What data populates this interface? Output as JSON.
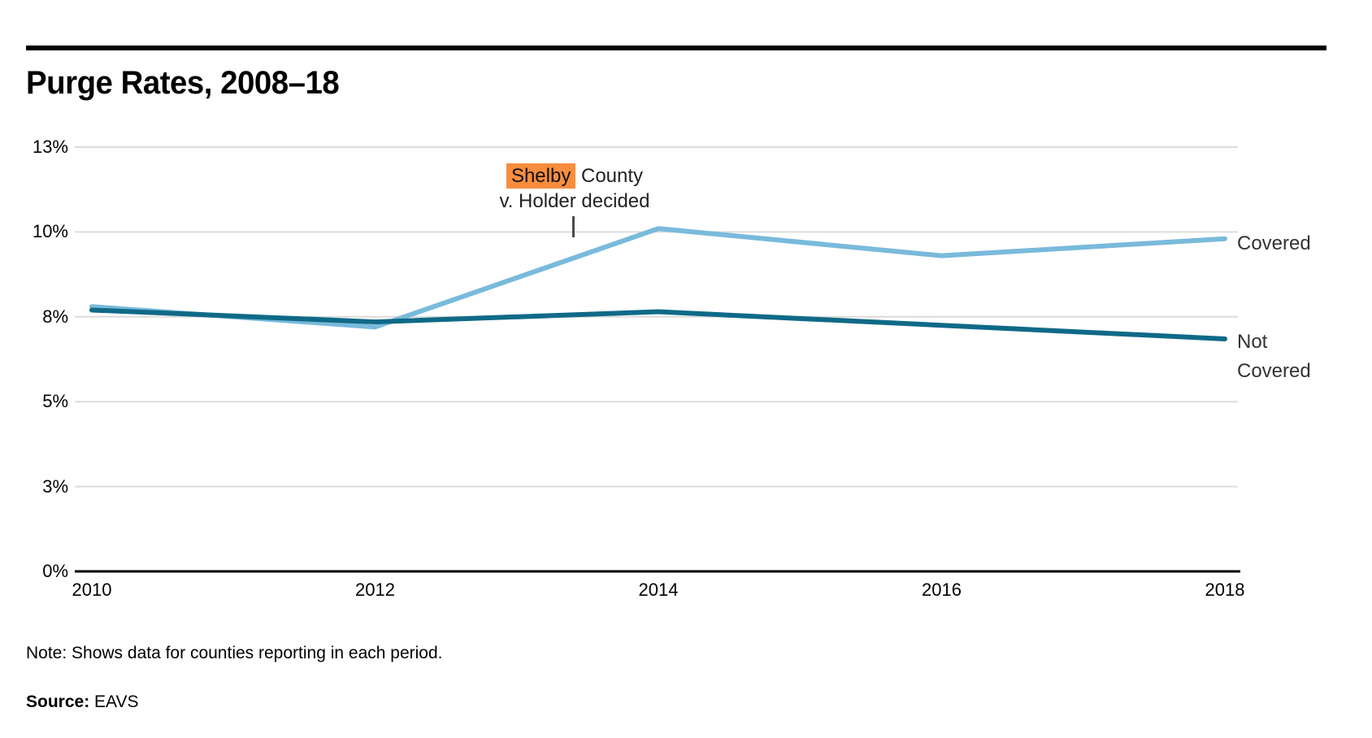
{
  "title": "Purge Rates, 2008–18",
  "chart_data": {
    "type": "line",
    "title": "Purge Rates, 2008–18",
    "x": [
      2010,
      2012,
      2014,
      2016,
      2018
    ],
    "x_tick_labels": [
      "2010",
      "2012",
      "2014",
      "2016",
      "2018"
    ],
    "ylim": [
      0,
      12.5
    ],
    "yticks": [
      {
        "value": 0,
        "label": "0%"
      },
      {
        "value": 2.5,
        "label": "3%"
      },
      {
        "value": 5,
        "label": "5%"
      },
      {
        "value": 7.5,
        "label": "8%"
      },
      {
        "value": 10,
        "label": "10%"
      },
      {
        "value": 12.5,
        "label": "13%"
      }
    ],
    "grid": "horizontal",
    "gridline_color": "#dcdcdc",
    "axis_color": "#000000",
    "series": [
      {
        "name": "Covered",
        "color": "#79badb",
        "values": [
          7.8,
          7.2,
          10.1,
          9.3,
          9.8
        ]
      },
      {
        "name": "Not Covered",
        "color": "#0f6a87",
        "values": [
          7.7,
          7.35,
          7.65,
          7.25,
          6.85
        ]
      }
    ],
    "legend_position": "right-of-line-ends",
    "annotation": {
      "highlight_word": "Shelby",
      "line1_rest": " County",
      "line2": "v. Holder decided",
      "highlight_color": "#f78d3d",
      "x_year": 2013.4
    }
  },
  "legend": {
    "covered": "Covered",
    "not_covered_line1": "Not",
    "not_covered_line2": "Covered"
  },
  "note": {
    "text": "Note: Shows data for counties reporting in each period."
  },
  "source": {
    "label": "Source:",
    "value": "EAVS"
  }
}
